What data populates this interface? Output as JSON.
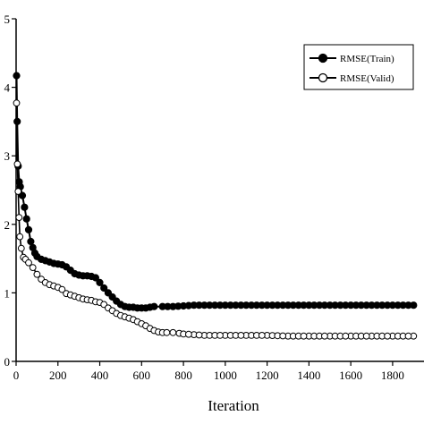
{
  "chart_data": {
    "type": "line",
    "title": "",
    "xlabel": "Iteration",
    "ylabel": "",
    "xlim": [
      0,
      1950
    ],
    "ylim": [
      0,
      5
    ],
    "x_ticks": [
      "0",
      "200",
      "400",
      "600",
      "800",
      "1000",
      "1200",
      "1400",
      "1600",
      "1800"
    ],
    "y_ticks": [
      "0",
      "1",
      "2",
      "3",
      "4",
      "5"
    ],
    "grid": false,
    "legend_position": "top-right",
    "series": [
      {
        "name": "RMSE(Train)",
        "marker": "filled-circle",
        "color": "#000000",
        "points": [
          [
            2,
            4.17
          ],
          [
            5,
            3.5
          ],
          [
            10,
            2.85
          ],
          [
            15,
            2.62
          ],
          [
            20,
            2.55
          ],
          [
            30,
            2.42
          ],
          [
            40,
            2.25
          ],
          [
            50,
            2.08
          ],
          [
            60,
            1.92
          ],
          [
            70,
            1.75
          ],
          [
            80,
            1.66
          ],
          [
            90,
            1.58
          ],
          [
            100,
            1.53
          ],
          [
            120,
            1.49
          ],
          [
            140,
            1.47
          ],
          [
            160,
            1.45
          ],
          [
            180,
            1.43
          ],
          [
            200,
            1.42
          ],
          [
            220,
            1.41
          ],
          [
            240,
            1.38
          ],
          [
            260,
            1.33
          ],
          [
            280,
            1.28
          ],
          [
            300,
            1.26
          ],
          [
            320,
            1.25
          ],
          [
            340,
            1.25
          ],
          [
            360,
            1.24
          ],
          [
            380,
            1.22
          ],
          [
            400,
            1.15
          ],
          [
            420,
            1.07
          ],
          [
            440,
            1.0
          ],
          [
            460,
            0.94
          ],
          [
            480,
            0.88
          ],
          [
            500,
            0.83
          ],
          [
            520,
            0.8
          ],
          [
            540,
            0.79
          ],
          [
            560,
            0.79
          ],
          [
            580,
            0.78
          ],
          [
            600,
            0.78
          ],
          [
            620,
            0.78
          ],
          [
            640,
            0.79
          ],
          [
            660,
            0.8
          ],
          [
            700,
            0.8
          ],
          [
            750,
            0.8
          ],
          [
            800,
            0.81
          ],
          [
            850,
            0.82
          ],
          [
            900,
            0.82
          ],
          [
            1000,
            0.82
          ],
          [
            1100,
            0.82
          ],
          [
            1200,
            0.82
          ],
          [
            1300,
            0.82
          ],
          [
            1400,
            0.82
          ],
          [
            1500,
            0.82
          ],
          [
            1600,
            0.82
          ],
          [
            1700,
            0.82
          ],
          [
            1800,
            0.82
          ],
          [
            1900,
            0.82
          ]
        ]
      },
      {
        "name": "RMSE(Valid)",
        "marker": "open-circle",
        "color": "#000000",
        "points": [
          [
            2,
            3.77
          ],
          [
            6,
            2.88
          ],
          [
            10,
            2.48
          ],
          [
            14,
            2.1
          ],
          [
            18,
            1.82
          ],
          [
            25,
            1.65
          ],
          [
            35,
            1.52
          ],
          [
            45,
            1.49
          ],
          [
            60,
            1.44
          ],
          [
            80,
            1.37
          ],
          [
            100,
            1.27
          ],
          [
            120,
            1.2
          ],
          [
            140,
            1.15
          ],
          [
            160,
            1.12
          ],
          [
            180,
            1.1
          ],
          [
            200,
            1.08
          ],
          [
            220,
            1.05
          ],
          [
            240,
            0.99
          ],
          [
            260,
            0.97
          ],
          [
            280,
            0.95
          ],
          [
            300,
            0.93
          ],
          [
            320,
            0.91
          ],
          [
            340,
            0.9
          ],
          [
            360,
            0.89
          ],
          [
            380,
            0.87
          ],
          [
            400,
            0.86
          ],
          [
            420,
            0.83
          ],
          [
            440,
            0.78
          ],
          [
            460,
            0.74
          ],
          [
            480,
            0.7
          ],
          [
            500,
            0.67
          ],
          [
            520,
            0.65
          ],
          [
            540,
            0.63
          ],
          [
            560,
            0.61
          ],
          [
            580,
            0.58
          ],
          [
            600,
            0.55
          ],
          [
            620,
            0.52
          ],
          [
            640,
            0.48
          ],
          [
            660,
            0.45
          ],
          [
            680,
            0.43
          ],
          [
            700,
            0.42
          ],
          [
            720,
            0.42
          ],
          [
            750,
            0.42
          ],
          [
            780,
            0.41
          ],
          [
            800,
            0.4
          ],
          [
            850,
            0.39
          ],
          [
            900,
            0.38
          ],
          [
            1000,
            0.38
          ],
          [
            1100,
            0.38
          ],
          [
            1200,
            0.38
          ],
          [
            1300,
            0.37
          ],
          [
            1400,
            0.37
          ],
          [
            1500,
            0.37
          ],
          [
            1600,
            0.37
          ],
          [
            1700,
            0.37
          ],
          [
            1800,
            0.37
          ],
          [
            1900,
            0.37
          ]
        ]
      }
    ]
  }
}
